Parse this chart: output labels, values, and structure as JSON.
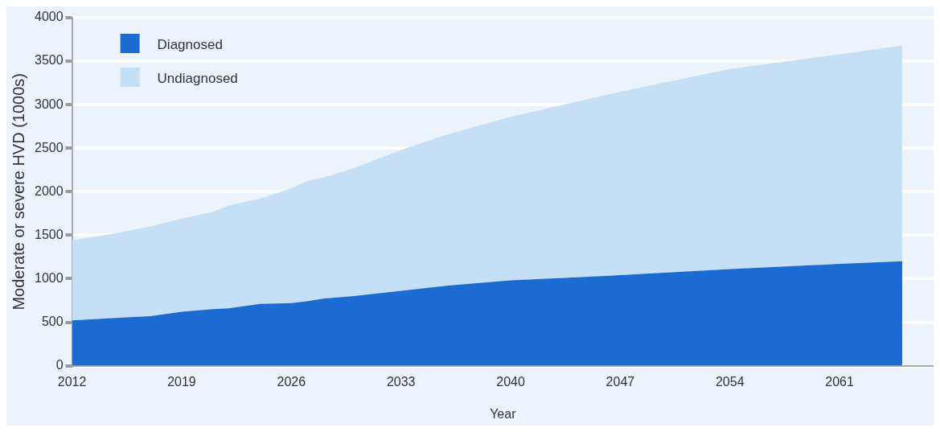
{
  "chart_data": {
    "type": "area",
    "xlabel": "Year",
    "ylabel": "Moderate or severe HVD (1000s)",
    "stacked": true,
    "x": [
      2012,
      2015,
      2017,
      2019,
      2021,
      2022,
      2024,
      2026,
      2027,
      2028,
      2030,
      2033,
      2036,
      2040,
      2047,
      2054,
      2061,
      2065
    ],
    "series": [
      {
        "name": "Diagnosed",
        "color": "#1b6bd3",
        "values": [
          520,
          550,
          570,
          620,
          650,
          660,
          710,
          720,
          740,
          770,
          800,
          860,
          920,
          980,
          1040,
          1110,
          1170,
          1200
        ]
      },
      {
        "name": "Undiagnosed",
        "color": "#c5dff7",
        "values": [
          920,
          980,
          1030,
          1070,
          1120,
          1180,
          1210,
          1320,
          1380,
          1390,
          1470,
          1620,
          1740,
          1880,
          2110,
          2300,
          2410,
          2480
        ]
      }
    ],
    "xlim": [
      2012,
      2067
    ],
    "xticks": [
      2012,
      2019,
      2026,
      2033,
      2040,
      2047,
      2054,
      2061
    ],
    "ylim": [
      0,
      4000
    ],
    "yticks": [
      0,
      500,
      1000,
      1500,
      2000,
      2500,
      3000,
      3500,
      4000
    ],
    "grid": "y",
    "legend": "top left"
  }
}
